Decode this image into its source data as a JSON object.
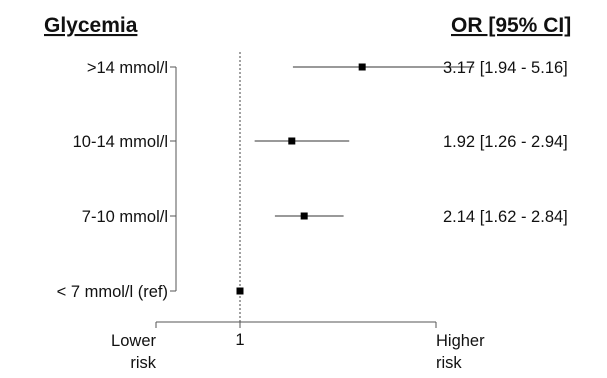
{
  "chart_data": {
    "type": "forest",
    "title_left": "Glycemia",
    "title_right": "OR [95% CI]",
    "reference_line": 1,
    "reference_label": "1",
    "xlabel_left": [
      "Lower",
      "risk"
    ],
    "xlabel_right": [
      "Higher",
      "risk"
    ],
    "xlim": [
      0.0,
      5.2
    ],
    "rows": [
      {
        "label": ">14 mmol/l",
        "or": 3.17,
        "lo": 1.94,
        "hi": 5.16,
        "text": "3.17 [1.94 - 5.16]"
      },
      {
        "label": "10-14 mmol/l",
        "or": 1.92,
        "lo": 1.26,
        "hi": 2.94,
        "text": "1.92 [1.26 - 2.94]"
      },
      {
        "label": "7-10 mmol/l",
        "or": 2.14,
        "lo": 1.62,
        "hi": 2.84,
        "text": "2.14 [1.62 - 2.84]"
      },
      {
        "label": "< 7 mmol/l (ref)",
        "or": 1.0,
        "lo": 1.0,
        "hi": 1.0,
        "text": ""
      }
    ]
  }
}
